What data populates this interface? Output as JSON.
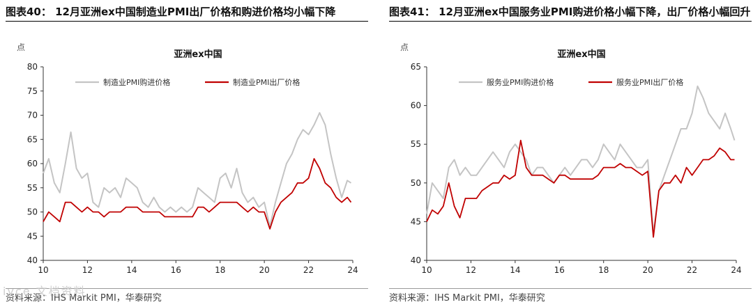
{
  "left_title": "图表40： 12月亚洲ex中国制造业PMI出厂价格和购进价格均小幅下降",
  "right_title": "图表41： 12月亚洲ex中国服务业PMI购进价格小幅下降，出厂价格小幅回升",
  "left_source": "资料来源：IHS Markit PMI，华泰研究",
  "right_source": "资料来源：IHS Markit PMI，华泰研究",
  "watermark": "iyce 文档资料",
  "colors": {
    "input": "#c4c4c4",
    "output": "#c00000"
  },
  "chart_data": [
    {
      "type": "line",
      "title": "亚洲ex中国",
      "ylabel": "点",
      "xlabel": "",
      "ylim": [
        40,
        80
      ],
      "yticks": [
        40,
        45,
        50,
        55,
        60,
        65,
        70,
        75,
        80
      ],
      "xlim": [
        2010,
        2024
      ],
      "xticks": [
        "10",
        "12",
        "14",
        "16",
        "18",
        "20",
        "22",
        "24"
      ],
      "legend_position": "top",
      "series": [
        {
          "name": "制造业PMI购进价格",
          "x": [
            2010.0,
            2010.25,
            2010.5,
            2010.75,
            2011.0,
            2011.25,
            2011.5,
            2011.75,
            2012.0,
            2012.25,
            2012.5,
            2012.75,
            2013.0,
            2013.25,
            2013.5,
            2013.75,
            2014.0,
            2014.25,
            2014.5,
            2014.75,
            2015.0,
            2015.25,
            2015.5,
            2015.75,
            2016.0,
            2016.25,
            2016.5,
            2016.75,
            2017.0,
            2017.25,
            2017.5,
            2017.75,
            2018.0,
            2018.25,
            2018.5,
            2018.75,
            2019.0,
            2019.25,
            2019.5,
            2019.75,
            2020.0,
            2020.25,
            2020.5,
            2020.75,
            2021.0,
            2021.25,
            2021.5,
            2021.75,
            2022.0,
            2022.25,
            2022.5,
            2022.75,
            2023.0,
            2023.25,
            2023.5,
            2023.75,
            2023.92
          ],
          "values": [
            58,
            61,
            56,
            54,
            60,
            66.5,
            59,
            57,
            58,
            52,
            51,
            55,
            54,
            55,
            53,
            57,
            56,
            55,
            52,
            51,
            53,
            51,
            50,
            51,
            50,
            51,
            50,
            51,
            55,
            54,
            53,
            52,
            57,
            58,
            55,
            59,
            54,
            52,
            53,
            51,
            52,
            47,
            52,
            56,
            60,
            62,
            65,
            67,
            66,
            68,
            70.5,
            68,
            62,
            57,
            53,
            56.5,
            56
          ]
        },
        {
          "name": "制造业PMI出厂价格",
          "x": [
            2010.0,
            2010.25,
            2010.5,
            2010.75,
            2011.0,
            2011.25,
            2011.5,
            2011.75,
            2012.0,
            2012.25,
            2012.5,
            2012.75,
            2013.0,
            2013.25,
            2013.5,
            2013.75,
            2014.0,
            2014.25,
            2014.5,
            2014.75,
            2015.0,
            2015.25,
            2015.5,
            2015.75,
            2016.0,
            2016.25,
            2016.5,
            2016.75,
            2017.0,
            2017.25,
            2017.5,
            2017.75,
            2018.0,
            2018.25,
            2018.5,
            2018.75,
            2019.0,
            2019.25,
            2019.5,
            2019.75,
            2020.0,
            2020.25,
            2020.5,
            2020.75,
            2021.0,
            2021.25,
            2021.5,
            2021.75,
            2022.0,
            2022.25,
            2022.5,
            2022.75,
            2023.0,
            2023.25,
            2023.5,
            2023.75,
            2023.92
          ],
          "values": [
            48,
            50,
            49,
            48,
            52,
            52,
            51,
            50,
            51,
            50,
            50,
            49,
            50,
            50,
            50,
            51,
            51,
            51,
            50,
            50,
            50,
            50,
            49,
            49,
            49,
            49,
            49,
            49,
            51,
            51,
            50,
            51,
            52,
            52,
            52,
            52,
            51,
            50,
            51,
            50,
            50,
            46.5,
            50,
            52,
            53,
            54,
            56,
            56,
            57,
            61,
            59,
            56,
            55,
            53,
            52,
            53,
            52
          ]
        }
      ]
    },
    {
      "type": "line",
      "title": "亚洲ex中国",
      "ylabel": "点",
      "xlabel": "",
      "ylim": [
        40,
        65
      ],
      "yticks": [
        40,
        45,
        50,
        55,
        60,
        65
      ],
      "xlim": [
        2010,
        2024
      ],
      "xticks": [
        "10",
        "12",
        "14",
        "16",
        "18",
        "20",
        "22",
        "24"
      ],
      "legend_position": "top",
      "series": [
        {
          "name": "服务业PMI购进价格",
          "x": [
            2010.0,
            2010.25,
            2010.5,
            2010.75,
            2011.0,
            2011.25,
            2011.5,
            2011.75,
            2012.0,
            2012.25,
            2012.5,
            2012.75,
            2013.0,
            2013.25,
            2013.5,
            2013.75,
            2014.0,
            2014.25,
            2014.5,
            2014.75,
            2015.0,
            2015.25,
            2015.5,
            2015.75,
            2016.0,
            2016.25,
            2016.5,
            2016.75,
            2017.0,
            2017.25,
            2017.5,
            2017.75,
            2018.0,
            2018.25,
            2018.5,
            2018.75,
            2019.0,
            2019.25,
            2019.5,
            2019.75,
            2020.0,
            2020.25,
            2020.5,
            2020.75,
            2021.0,
            2021.25,
            2021.5,
            2021.75,
            2022.0,
            2022.25,
            2022.5,
            2022.75,
            2023.0,
            2023.25,
            2023.5,
            2023.75,
            2023.92
          ],
          "values": [
            46,
            50,
            49,
            48,
            52,
            53,
            51,
            52,
            51,
            51,
            52,
            53,
            54,
            53,
            52,
            54,
            55,
            54,
            53,
            51,
            52,
            52,
            51,
            50,
            51,
            52,
            51,
            52,
            53,
            53,
            52,
            53,
            55,
            54,
            53,
            55,
            54,
            53,
            52,
            52,
            53,
            43.5,
            49,
            51,
            53,
            55,
            57,
            57,
            59,
            62.5,
            61,
            59,
            58,
            57,
            59,
            57,
            55.5
          ]
        },
        {
          "name": "服务业PMI出厂价格",
          "x": [
            2010.0,
            2010.25,
            2010.5,
            2010.75,
            2011.0,
            2011.25,
            2011.5,
            2011.75,
            2012.0,
            2012.25,
            2012.5,
            2012.75,
            2013.0,
            2013.25,
            2013.5,
            2013.75,
            2014.0,
            2014.25,
            2014.5,
            2014.75,
            2015.0,
            2015.25,
            2015.5,
            2015.75,
            2016.0,
            2016.25,
            2016.5,
            2016.75,
            2017.0,
            2017.25,
            2017.5,
            2017.75,
            2018.0,
            2018.25,
            2018.5,
            2018.75,
            2019.0,
            2019.25,
            2019.5,
            2019.75,
            2020.0,
            2020.25,
            2020.5,
            2020.75,
            2021.0,
            2021.25,
            2021.5,
            2021.75,
            2022.0,
            2022.25,
            2022.5,
            2022.75,
            2023.0,
            2023.25,
            2023.5,
            2023.75,
            2023.92
          ],
          "values": [
            45,
            46.5,
            46,
            47,
            50,
            47,
            45.5,
            48,
            48,
            48,
            49,
            49.5,
            50,
            50,
            51,
            50.5,
            51,
            55.5,
            52,
            51,
            51,
            51,
            50.5,
            50,
            51,
            51,
            50.5,
            50.5,
            50.5,
            50.5,
            50.5,
            51,
            52,
            52,
            52,
            52.5,
            52,
            52,
            51.5,
            51,
            51.5,
            43,
            49,
            50,
            50,
            51,
            50,
            52,
            51,
            52,
            53,
            53,
            53.5,
            54.5,
            54,
            53,
            53
          ]
        }
      ]
    }
  ]
}
